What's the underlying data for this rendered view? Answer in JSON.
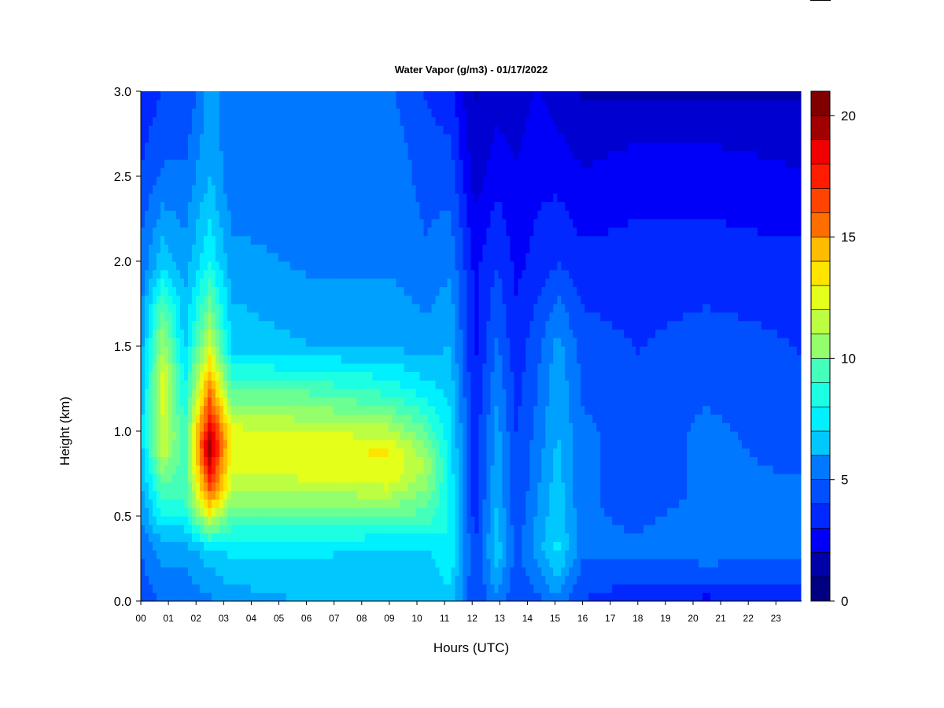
{
  "chart_data": {
    "type": "heatmap",
    "title": "Water Vapor (g/m3) - 01/17/2022",
    "xlabel": "Hours (UTC)",
    "ylabel": "Height (km)",
    "xlim": [
      0,
      23.9
    ],
    "ylim": [
      0.0,
      3.0
    ],
    "x_ticks": [
      0,
      1,
      2,
      3,
      4,
      5,
      6,
      7,
      8,
      9,
      10,
      11,
      12,
      13,
      14,
      15,
      16,
      17,
      18,
      19,
      20,
      21,
      22,
      23
    ],
    "x_tick_labels": [
      "00",
      "01",
      "02",
      "03",
      "04",
      "05",
      "06",
      "07",
      "08",
      "09",
      "10",
      "11",
      "12",
      "13",
      "14",
      "15",
      "16",
      "17",
      "18",
      "19",
      "20",
      "21",
      "22",
      "23"
    ],
    "y_ticks": [
      0.0,
      0.5,
      1.0,
      1.5,
      2.0,
      2.5,
      3.0
    ],
    "y_tick_labels": [
      "0.0",
      "0.5",
      "1.0",
      "1.5",
      "2.0",
      "2.5",
      "3.0"
    ],
    "colorbar": {
      "range": [
        0,
        21
      ],
      "ticks": [
        0,
        5,
        10,
        15,
        20
      ],
      "tick_labels": [
        "0",
        "5",
        "10",
        "15",
        "20"
      ],
      "levels": 21,
      "colors": [
        "#000080",
        "#0000A8",
        "#0000D0",
        "#0000F8",
        "#0028FF",
        "#0050FF",
        "#0078FF",
        "#00A0FF",
        "#00C8FF",
        "#00F0FF",
        "#1CFFE2",
        "#44FFBA",
        "#6CFF92",
        "#94FF6A",
        "#BCFF42",
        "#E4FF1A",
        "#FFE400",
        "#FFBC00",
        "#FF9400",
        "#FF6C00",
        "#FF4400",
        "#FF1C00",
        "#F00000",
        "#C80000",
        "#A00000",
        "#800000"
      ]
    },
    "profiles": [
      {
        "hour": 0.0,
        "values": [
          [
            0.0,
            4
          ],
          [
            0.3,
            5
          ],
          [
            0.6,
            6
          ],
          [
            1.0,
            7
          ],
          [
            1.5,
            6
          ],
          [
            2.0,
            5
          ],
          [
            2.6,
            4
          ],
          [
            3.0,
            3.5
          ]
        ]
      },
      {
        "hour": 0.8,
        "values": [
          [
            0.0,
            5
          ],
          [
            0.3,
            6
          ],
          [
            0.6,
            9
          ],
          [
            0.9,
            12
          ],
          [
            1.3,
            12.5
          ],
          [
            1.7,
            10
          ],
          [
            2.0,
            7
          ],
          [
            2.5,
            5
          ],
          [
            3.0,
            4
          ]
        ]
      },
      {
        "hour": 1.6,
        "values": [
          [
            0.0,
            5
          ],
          [
            0.3,
            6
          ],
          [
            0.6,
            9
          ],
          [
            1.0,
            9
          ],
          [
            1.5,
            7
          ],
          [
            2.0,
            6
          ],
          [
            2.5,
            5
          ],
          [
            3.0,
            4
          ]
        ]
      },
      {
        "hour": 2.5,
        "values": [
          [
            0.0,
            5.5
          ],
          [
            0.3,
            7
          ],
          [
            0.6,
            15
          ],
          [
            0.9,
            20
          ],
          [
            1.2,
            16
          ],
          [
            1.5,
            12
          ],
          [
            2.0,
            8
          ],
          [
            2.5,
            6.5
          ],
          [
            3.0,
            6
          ]
        ]
      },
      {
        "hour": 3.3,
        "values": [
          [
            0.0,
            6
          ],
          [
            0.3,
            7.5
          ],
          [
            0.45,
            9
          ],
          [
            0.7,
            12
          ],
          [
            1.0,
            12.5
          ],
          [
            1.2,
            10
          ],
          [
            1.5,
            7
          ],
          [
            2.0,
            6
          ],
          [
            2.5,
            5
          ],
          [
            3.0,
            5
          ]
        ]
      },
      {
        "hour": 6.0,
        "values": [
          [
            0.0,
            6.5
          ],
          [
            0.3,
            7.5
          ],
          [
            0.45,
            9
          ],
          [
            0.7,
            12
          ],
          [
            0.9,
            13
          ],
          [
            1.2,
            10
          ],
          [
            1.5,
            6.5
          ],
          [
            2.0,
            5.5
          ],
          [
            2.5,
            5
          ],
          [
            3.0,
            5
          ]
        ]
      },
      {
        "hour": 9.0,
        "values": [
          [
            0.0,
            6.5
          ],
          [
            0.3,
            7
          ],
          [
            0.45,
            9
          ],
          [
            0.7,
            12.5
          ],
          [
            0.9,
            13
          ],
          [
            1.2,
            9
          ],
          [
            1.5,
            6.5
          ],
          [
            2.0,
            5.5
          ],
          [
            2.5,
            5.5
          ],
          [
            3.0,
            5
          ]
        ]
      },
      {
        "hour": 10.3,
        "values": [
          [
            0.0,
            6.5
          ],
          [
            0.3,
            7
          ],
          [
            0.45,
            9
          ],
          [
            0.8,
            11.5
          ],
          [
            1.2,
            8
          ],
          [
            1.5,
            6
          ],
          [
            2.0,
            5
          ],
          [
            2.5,
            4.5
          ],
          [
            3.0,
            4
          ]
        ]
      },
      {
        "hour": 11.2,
        "values": [
          [
            0.0,
            7
          ],
          [
            0.3,
            8
          ],
          [
            0.6,
            8
          ],
          [
            1.0,
            7.5
          ],
          [
            1.5,
            6.5
          ],
          [
            2.0,
            5.5
          ],
          [
            2.5,
            4.5
          ],
          [
            3.0,
            3.5
          ]
        ]
      },
      {
        "hour": 12.1,
        "values": [
          [
            0.0,
            4
          ],
          [
            0.3,
            4
          ],
          [
            0.6,
            3.5
          ],
          [
            1.0,
            3.5
          ],
          [
            1.5,
            3
          ],
          [
            2.0,
            3
          ],
          [
            2.5,
            2
          ],
          [
            3.0,
            1.5
          ]
        ]
      },
      {
        "hour": 12.9,
        "values": [
          [
            0.0,
            5.5
          ],
          [
            0.3,
            7
          ],
          [
            0.6,
            6.5
          ],
          [
            1.0,
            6
          ],
          [
            1.5,
            5
          ],
          [
            2.0,
            4
          ],
          [
            2.5,
            3
          ],
          [
            3.0,
            2
          ]
        ]
      },
      {
        "hour": 13.6,
        "values": [
          [
            0.0,
            4
          ],
          [
            0.3,
            4.5
          ],
          [
            0.6,
            4
          ],
          [
            1.0,
            4
          ],
          [
            1.5,
            3.5
          ],
          [
            2.0,
            3
          ],
          [
            2.5,
            2.5
          ],
          [
            3.0,
            2
          ]
        ]
      },
      {
        "hour": 14.3,
        "values": [
          [
            0.0,
            4.5
          ],
          [
            0.3,
            6
          ],
          [
            0.6,
            5.5
          ],
          [
            1.0,
            5
          ],
          [
            1.5,
            4.5
          ],
          [
            2.0,
            3.5
          ],
          [
            2.5,
            3
          ],
          [
            3.0,
            2.5
          ]
        ]
      },
      {
        "hour": 15.1,
        "values": [
          [
            0.0,
            5.5
          ],
          [
            0.3,
            7.5
          ],
          [
            0.6,
            7
          ],
          [
            1.0,
            6.5
          ],
          [
            1.5,
            6
          ],
          [
            2.0,
            4
          ],
          [
            2.5,
            3
          ],
          [
            3.0,
            2
          ]
        ]
      },
      {
        "hour": 16.0,
        "values": [
          [
            0.0,
            4
          ],
          [
            0.3,
            5
          ],
          [
            0.6,
            5
          ],
          [
            1.0,
            5
          ],
          [
            1.5,
            4.5
          ],
          [
            2.0,
            3.5
          ],
          [
            2.5,
            2.5
          ],
          [
            3.0,
            1.5
          ]
        ]
      },
      {
        "hour": 18.0,
        "values": [
          [
            0.0,
            3.5
          ],
          [
            0.3,
            5
          ],
          [
            0.6,
            4.5
          ],
          [
            1.0,
            4.5
          ],
          [
            1.5,
            4
          ],
          [
            2.0,
            3.5
          ],
          [
            2.5,
            3
          ],
          [
            3.0,
            1.5
          ]
        ]
      },
      {
        "hour": 20.5,
        "values": [
          [
            0.0,
            3
          ],
          [
            0.3,
            5.5
          ],
          [
            0.6,
            5
          ],
          [
            1.0,
            5
          ],
          [
            1.5,
            4.5
          ],
          [
            2.0,
            3.5
          ],
          [
            2.5,
            3
          ],
          [
            3.0,
            1.5
          ]
        ]
      },
      {
        "hour": 23.9,
        "values": [
          [
            0.0,
            3.5
          ],
          [
            0.3,
            5
          ],
          [
            0.6,
            5
          ],
          [
            1.0,
            4.5
          ],
          [
            1.5,
            4
          ],
          [
            2.0,
            3.5
          ],
          [
            2.5,
            2.5
          ],
          [
            3.0,
            1.5
          ]
        ]
      }
    ]
  }
}
